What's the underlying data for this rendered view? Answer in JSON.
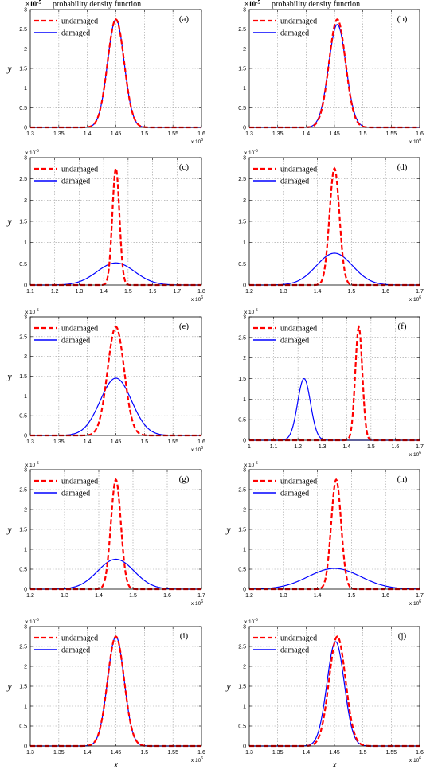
{
  "figure": {
    "title_left": "probability density function",
    "title_right": "probability density function"
  },
  "chart_data": [
    {
      "id": "a",
      "label": "(a)",
      "type": "line",
      "xlim": [
        1.3,
        1.6
      ],
      "xticks": [
        "1.3",
        "1.35",
        "1.4",
        "1.45",
        "1.5",
        "1.55",
        "1.6"
      ],
      "xtick_values": [
        1.3,
        1.35,
        1.4,
        1.45,
        1.5,
        1.55,
        1.6
      ],
      "ylim": [
        0,
        3
      ],
      "yticks": [
        "0",
        "0.5",
        "1",
        "1.5",
        "2",
        "2.5",
        "3"
      ],
      "ytick_values": [
        0,
        0.5,
        1,
        1.5,
        2,
        2.5,
        3
      ],
      "x_multiplier": "x 10",
      "x_multiplier_exp": "6",
      "y_multiplier": "×10",
      "y_multiplier_exp": "-5",
      "ylabel": "y",
      "xlabel": "",
      "legend": [
        "undamaged",
        "damaged"
      ],
      "legend_position": "top-left",
      "grid": true,
      "series": [
        {
          "name": "undamaged",
          "mu": 1.45,
          "sigma": 0.0145,
          "peak": 2.75
        },
        {
          "name": "damaged",
          "mu": 1.45,
          "sigma": 0.0145,
          "peak": 2.75
        }
      ]
    },
    {
      "id": "b",
      "label": "(b)",
      "type": "line",
      "xlim": [
        1.3,
        1.6
      ],
      "xticks": [
        "1.3",
        "1.35",
        "1.4",
        "1.45",
        "1.5",
        "1.55",
        "1.6"
      ],
      "xtick_values": [
        1.3,
        1.35,
        1.4,
        1.45,
        1.5,
        1.55,
        1.6
      ],
      "ylim": [
        0,
        3
      ],
      "yticks": [
        "0",
        "0.5",
        "1",
        "1.5",
        "2",
        "2.5",
        "3"
      ],
      "ytick_values": [
        0,
        0.5,
        1,
        1.5,
        2,
        2.5,
        3
      ],
      "x_multiplier": "x 10",
      "x_multiplier_exp": "6",
      "y_multiplier": "×10",
      "y_multiplier_exp": "-5",
      "ylabel": "",
      "xlabel": "",
      "legend": [
        "undamaged",
        "damaged"
      ],
      "legend_position": "top-left",
      "grid": true,
      "series": [
        {
          "name": "undamaged",
          "mu": 1.455,
          "sigma": 0.0145,
          "peak": 2.75
        },
        {
          "name": "damaged",
          "mu": 1.455,
          "sigma": 0.0152,
          "peak": 2.62
        }
      ]
    },
    {
      "id": "c",
      "label": "(c)",
      "type": "line",
      "xlim": [
        1.1,
        1.8
      ],
      "xticks": [
        "1.1",
        "1.2",
        "1.3",
        "1.4",
        "1.5",
        "1.6",
        "1.7",
        "1.8"
      ],
      "xtick_values": [
        1.1,
        1.2,
        1.3,
        1.4,
        1.5,
        1.6,
        1.7,
        1.8
      ],
      "ylim": [
        0,
        3
      ],
      "yticks": [
        "0",
        "0.5",
        "1",
        "1.5",
        "2",
        "2.5",
        "3"
      ],
      "ytick_values": [
        0,
        0.5,
        1,
        1.5,
        2,
        2.5,
        3
      ],
      "x_multiplier": "x 10",
      "x_multiplier_exp": "6",
      "y_multiplier": "x 10",
      "y_multiplier_exp": "-5",
      "ylabel": "y",
      "xlabel": "",
      "legend": [
        "undamaged",
        "damaged"
      ],
      "legend_position": "top-left",
      "grid": true,
      "series": [
        {
          "name": "undamaged",
          "mu": 1.45,
          "sigma": 0.0145,
          "peak": 2.75
        },
        {
          "name": "damaged",
          "mu": 1.45,
          "sigma": 0.077,
          "peak": 0.52
        }
      ]
    },
    {
      "id": "d",
      "label": "(d)",
      "type": "line",
      "xlim": [
        1.2,
        1.7
      ],
      "xticks": [
        "1.2",
        "1.3",
        "1.4",
        "1.5",
        "1.6",
        "1.7"
      ],
      "xtick_values": [
        1.2,
        1.3,
        1.4,
        1.5,
        1.6,
        1.7
      ],
      "ylim": [
        0,
        3
      ],
      "yticks": [
        "0",
        "0.5",
        "1",
        "1.5",
        "2",
        "2.5",
        "3"
      ],
      "ytick_values": [
        0,
        0.5,
        1,
        1.5,
        2,
        2.5,
        3
      ],
      "x_multiplier": "x 10",
      "x_multiplier_exp": "6",
      "y_multiplier": "x 10",
      "y_multiplier_exp": "-5",
      "ylabel": "",
      "xlabel": "",
      "legend": [
        "undamaged",
        "damaged"
      ],
      "legend_position": "top-left",
      "grid": true,
      "series": [
        {
          "name": "undamaged",
          "mu": 1.45,
          "sigma": 0.0145,
          "peak": 2.75
        },
        {
          "name": "damaged",
          "mu": 1.45,
          "sigma": 0.053,
          "peak": 0.75
        }
      ]
    },
    {
      "id": "e",
      "label": "(e)",
      "type": "line",
      "xlim": [
        1.3,
        1.6
      ],
      "xticks": [
        "1.3",
        "1.35",
        "1.4",
        "1.45",
        "1.5",
        "1.55",
        "1.6"
      ],
      "xtick_values": [
        1.3,
        1.35,
        1.4,
        1.45,
        1.5,
        1.55,
        1.6
      ],
      "ylim": [
        0,
        3
      ],
      "yticks": [
        "0",
        "0.5",
        "1",
        "1.5",
        "2",
        "2.5",
        "3"
      ],
      "ytick_values": [
        0,
        0.5,
        1,
        1.5,
        2,
        2.5,
        3
      ],
      "x_multiplier": "x 10",
      "x_multiplier_exp": "6",
      "y_multiplier": "x 10",
      "y_multiplier_exp": "-5",
      "ylabel": "y",
      "xlabel": "",
      "legend": [
        "undamaged",
        "damaged"
      ],
      "legend_position": "top-left",
      "grid": true,
      "series": [
        {
          "name": "undamaged",
          "mu": 1.45,
          "sigma": 0.0145,
          "peak": 2.75
        },
        {
          "name": "damaged",
          "mu": 1.45,
          "sigma": 0.0275,
          "peak": 1.45
        }
      ]
    },
    {
      "id": "f",
      "label": "(f)",
      "type": "line",
      "xlim": [
        1.0,
        1.7
      ],
      "xticks": [
        "1",
        "1.1",
        "1.2",
        "1.3",
        "1.4",
        "1.5",
        "1.6",
        "1.7"
      ],
      "xtick_values": [
        1.0,
        1.1,
        1.2,
        1.3,
        1.4,
        1.5,
        1.6,
        1.7
      ],
      "ylim": [
        0,
        3
      ],
      "yticks": [
        "0",
        "0.5",
        "1",
        "1.5",
        "2",
        "2.5",
        "3"
      ],
      "ytick_values": [
        0,
        0.5,
        1,
        1.5,
        2,
        2.5,
        3
      ],
      "x_multiplier": "x 10",
      "x_multiplier_exp": "6",
      "y_multiplier": "x 10",
      "y_multiplier_exp": "-5",
      "ylabel": "",
      "xlabel": "",
      "legend": [
        "undamaged",
        "damaged"
      ],
      "legend_position": "top-left",
      "grid": true,
      "series": [
        {
          "name": "undamaged",
          "mu": 1.45,
          "sigma": 0.0145,
          "peak": 2.75
        },
        {
          "name": "damaged",
          "mu": 1.225,
          "sigma": 0.0265,
          "peak": 1.5
        }
      ]
    },
    {
      "id": "g",
      "label": "(g)",
      "type": "line",
      "xlim": [
        1.2,
        1.7
      ],
      "xticks": [
        "1.2",
        "1.3",
        "1.4",
        "1.5",
        "1.6",
        "1.7"
      ],
      "xtick_values": [
        1.2,
        1.3,
        1.4,
        1.5,
        1.6,
        1.7
      ],
      "ylim": [
        0,
        3
      ],
      "yticks": [
        "0",
        "0.5",
        "1",
        "1.5",
        "2",
        "2.5",
        "3"
      ],
      "ytick_values": [
        0,
        0.5,
        1,
        1.5,
        2,
        2.5,
        3
      ],
      "x_multiplier": "x 10",
      "x_multiplier_exp": "6",
      "y_multiplier": "x 10",
      "y_multiplier_exp": "-5",
      "ylabel": "y",
      "xlabel": "",
      "legend": [
        "undamaged",
        "damaged"
      ],
      "legend_position": "top-left",
      "grid": true,
      "series": [
        {
          "name": "undamaged",
          "mu": 1.45,
          "sigma": 0.0145,
          "peak": 2.75
        },
        {
          "name": "damaged",
          "mu": 1.45,
          "sigma": 0.053,
          "peak": 0.75
        }
      ]
    },
    {
      "id": "h",
      "label": "(h)",
      "type": "line",
      "xlim": [
        1.2,
        1.7
      ],
      "xticks": [
        "1.2",
        "1.3",
        "1.4",
        "1.5",
        "1.6",
        "1.7"
      ],
      "xtick_values": [
        1.2,
        1.3,
        1.4,
        1.5,
        1.6,
        1.7
      ],
      "ylim": [
        0,
        3
      ],
      "yticks": [
        "0",
        "0.5",
        "1",
        "1.5",
        "2",
        "2.5",
        "3"
      ],
      "ytick_values": [
        0,
        0.5,
        1,
        1.5,
        2,
        2.5,
        3
      ],
      "x_multiplier": "x 10",
      "x_multiplier_exp": "6",
      "y_multiplier": "x 10",
      "y_multiplier_exp": "-5",
      "ylabel": "y",
      "xlabel": "",
      "legend": [
        "undamaged",
        "damaged"
      ],
      "legend_position": "top-left",
      "grid": true,
      "series": [
        {
          "name": "undamaged",
          "mu": 1.455,
          "sigma": 0.0145,
          "peak": 2.75
        },
        {
          "name": "damaged",
          "mu": 1.45,
          "sigma": 0.077,
          "peak": 0.52
        }
      ]
    },
    {
      "id": "i",
      "label": "(i)",
      "type": "line",
      "xlim": [
        1.3,
        1.6
      ],
      "xticks": [
        "1.3",
        "1.35",
        "1.4",
        "1.45",
        "1.5",
        "1.55",
        "1.6"
      ],
      "xtick_values": [
        1.3,
        1.35,
        1.4,
        1.45,
        1.5,
        1.55,
        1.6
      ],
      "ylim": [
        0,
        3
      ],
      "yticks": [
        "0",
        "0.5",
        "1",
        "1.5",
        "2",
        "2.5",
        "3"
      ],
      "ytick_values": [
        0,
        0.5,
        1,
        1.5,
        2,
        2.5,
        3
      ],
      "x_multiplier": "x 10",
      "x_multiplier_exp": "6",
      "y_multiplier": "x 10",
      "y_multiplier_exp": "-5",
      "ylabel": "y",
      "xlabel": "x",
      "legend": [
        "undamaged",
        "damaged"
      ],
      "legend_position": "top-left",
      "grid": true,
      "series": [
        {
          "name": "undamaged",
          "mu": 1.45,
          "sigma": 0.0145,
          "peak": 2.75
        },
        {
          "name": "damaged",
          "mu": 1.45,
          "sigma": 0.0145,
          "peak": 2.75
        }
      ]
    },
    {
      "id": "j",
      "label": "(j)",
      "type": "line",
      "xlim": [
        1.3,
        1.6
      ],
      "xticks": [
        "1.3",
        "1.35",
        "1.4",
        "1.45",
        "1.5",
        "1.55",
        "1.6"
      ],
      "xtick_values": [
        1.3,
        1.35,
        1.4,
        1.45,
        1.5,
        1.55,
        1.6
      ],
      "ylim": [
        0,
        3
      ],
      "yticks": [
        "0",
        "0.5",
        "1",
        "1.5",
        "2",
        "2.5",
        "3"
      ],
      "ytick_values": [
        0,
        0.5,
        1,
        1.5,
        2,
        2.5,
        3
      ],
      "x_multiplier": "x 10",
      "x_multiplier_exp": "6",
      "y_multiplier": "x 10",
      "y_multiplier_exp": "-5",
      "ylabel": "y",
      "xlabel": "x",
      "legend": [
        "undamaged",
        "damaged"
      ],
      "legend_position": "top-left",
      "grid": true,
      "series": [
        {
          "name": "undamaged",
          "mu": 1.455,
          "sigma": 0.0145,
          "peak": 2.75
        },
        {
          "name": "damaged",
          "mu": 1.452,
          "sigma": 0.0152,
          "peak": 2.62
        }
      ]
    }
  ]
}
